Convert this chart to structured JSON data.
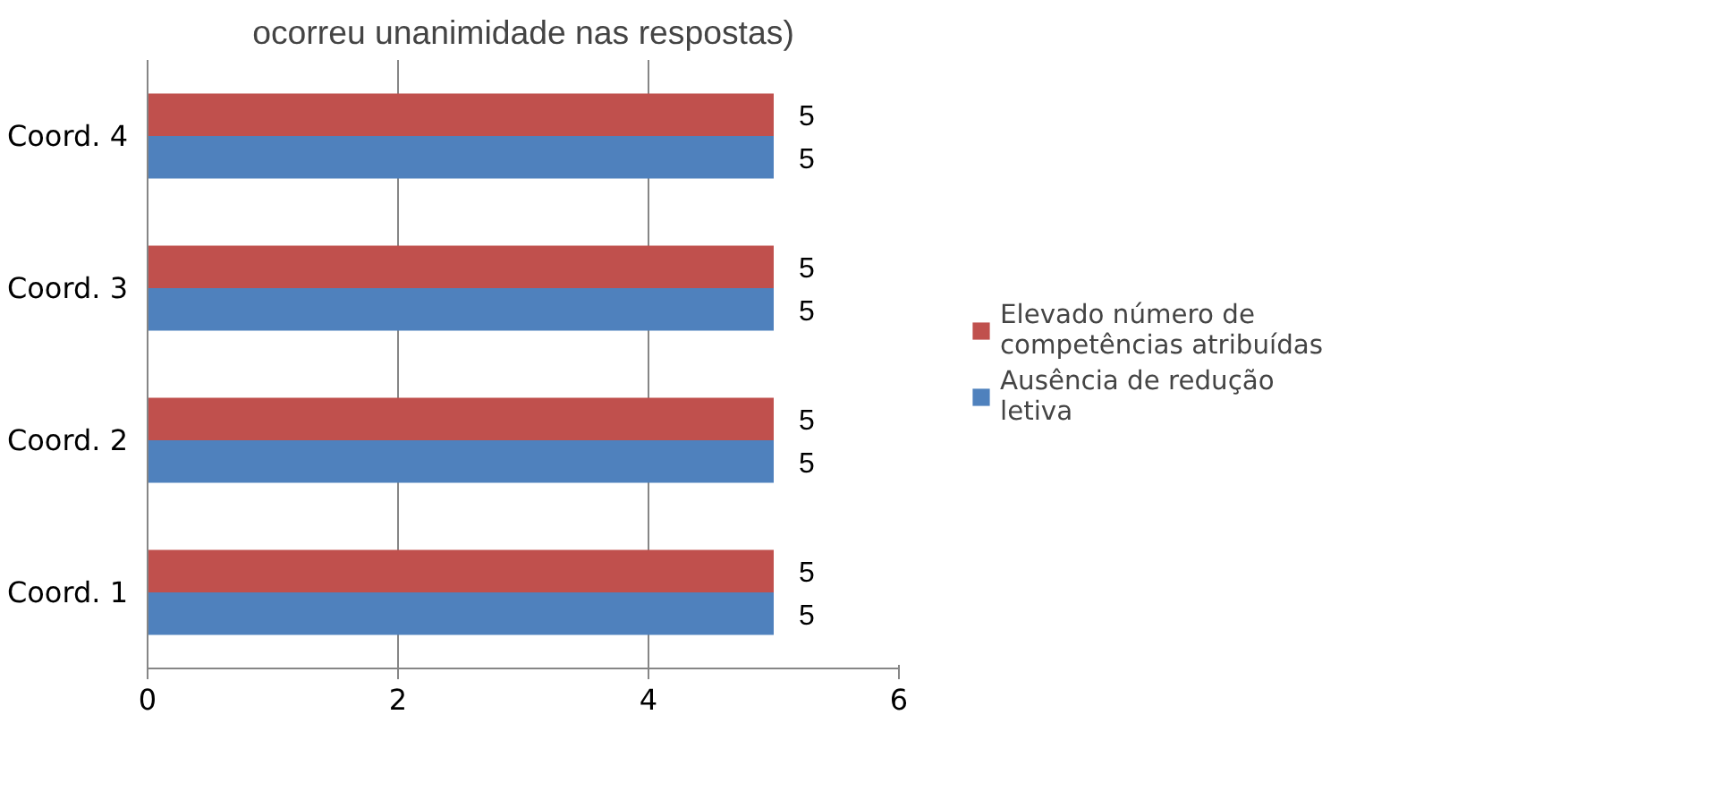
{
  "chart_data": {
    "type": "bar",
    "orientation": "horizontal",
    "title": "ocorreu unanimidade nas respostas)",
    "categories": [
      "Coord. 4",
      "Coord. 3",
      "Coord. 2",
      "Coord. 1"
    ],
    "series": [
      {
        "name": "Elevado número de competências atribuídas",
        "color": "#c0504d",
        "values": [
          5,
          5,
          5,
          5
        ]
      },
      {
        "name": "Ausência de redução letiva",
        "color": "#4f81bd",
        "values": [
          5,
          5,
          5,
          5
        ]
      }
    ],
    "xlim": [
      0,
      6
    ],
    "xticks": [
      0,
      2,
      4,
      6
    ],
    "grid": "x",
    "legend": "right",
    "data_labels": true
  }
}
